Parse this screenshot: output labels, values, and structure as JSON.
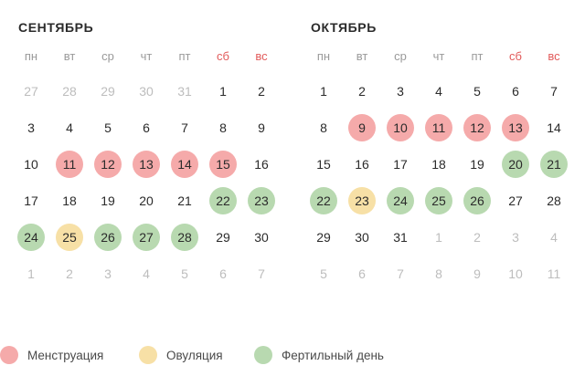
{
  "colors": {
    "menstruation": "#f5aaaa",
    "ovulation": "#f7e0a6",
    "fertile": "#b8d9b0",
    "weekend_header": "#e25b5b",
    "muted": "#bdbdbd"
  },
  "weekdays": [
    {
      "label": "пн",
      "weekend": false
    },
    {
      "label": "вт",
      "weekend": false
    },
    {
      "label": "ср",
      "weekend": false
    },
    {
      "label": "чт",
      "weekend": false
    },
    {
      "label": "пт",
      "weekend": false
    },
    {
      "label": "сб",
      "weekend": true
    },
    {
      "label": "вс",
      "weekend": true
    }
  ],
  "months": [
    {
      "title": "Сентябрь",
      "weeks": [
        [
          {
            "d": "27",
            "muted": true
          },
          {
            "d": "28",
            "muted": true
          },
          {
            "d": "29",
            "muted": true
          },
          {
            "d": "30",
            "muted": true
          },
          {
            "d": "31",
            "muted": true
          },
          {
            "d": "1"
          },
          {
            "d": "2"
          }
        ],
        [
          {
            "d": "3"
          },
          {
            "d": "4"
          },
          {
            "d": "5"
          },
          {
            "d": "6"
          },
          {
            "d": "7"
          },
          {
            "d": "8"
          },
          {
            "d": "9"
          }
        ],
        [
          {
            "d": "10"
          },
          {
            "d": "11",
            "t": "m"
          },
          {
            "d": "12",
            "t": "m"
          },
          {
            "d": "13",
            "t": "m"
          },
          {
            "d": "14",
            "t": "m"
          },
          {
            "d": "15",
            "t": "m"
          },
          {
            "d": "16"
          }
        ],
        [
          {
            "d": "17"
          },
          {
            "d": "18"
          },
          {
            "d": "19"
          },
          {
            "d": "20"
          },
          {
            "d": "21"
          },
          {
            "d": "22",
            "t": "f"
          },
          {
            "d": "23",
            "t": "f"
          }
        ],
        [
          {
            "d": "24",
            "t": "f"
          },
          {
            "d": "25",
            "t": "o"
          },
          {
            "d": "26",
            "t": "f"
          },
          {
            "d": "27",
            "t": "f"
          },
          {
            "d": "28",
            "t": "f"
          },
          {
            "d": "29"
          },
          {
            "d": "30"
          }
        ],
        [
          {
            "d": "1",
            "muted": true
          },
          {
            "d": "2",
            "muted": true
          },
          {
            "d": "3",
            "muted": true
          },
          {
            "d": "4",
            "muted": true
          },
          {
            "d": "5",
            "muted": true
          },
          {
            "d": "6",
            "muted": true
          },
          {
            "d": "7",
            "muted": true
          }
        ]
      ]
    },
    {
      "title": "Октябрь",
      "weeks": [
        [
          {
            "d": "1"
          },
          {
            "d": "2"
          },
          {
            "d": "3"
          },
          {
            "d": "4"
          },
          {
            "d": "5"
          },
          {
            "d": "6"
          },
          {
            "d": "7"
          }
        ],
        [
          {
            "d": "8"
          },
          {
            "d": "9",
            "t": "m"
          },
          {
            "d": "10",
            "t": "m"
          },
          {
            "d": "11",
            "t": "m"
          },
          {
            "d": "12",
            "t": "m"
          },
          {
            "d": "13",
            "t": "m"
          },
          {
            "d": "14"
          }
        ],
        [
          {
            "d": "15"
          },
          {
            "d": "16"
          },
          {
            "d": "17"
          },
          {
            "d": "18"
          },
          {
            "d": "19"
          },
          {
            "d": "20",
            "t": "f"
          },
          {
            "d": "21",
            "t": "f"
          }
        ],
        [
          {
            "d": "22",
            "t": "f"
          },
          {
            "d": "23",
            "t": "o"
          },
          {
            "d": "24",
            "t": "f"
          },
          {
            "d": "25",
            "t": "f"
          },
          {
            "d": "26",
            "t": "f"
          },
          {
            "d": "27"
          },
          {
            "d": "28"
          }
        ],
        [
          {
            "d": "29"
          },
          {
            "d": "30"
          },
          {
            "d": "31"
          },
          {
            "d": "1",
            "muted": true
          },
          {
            "d": "2",
            "muted": true
          },
          {
            "d": "3",
            "muted": true
          },
          {
            "d": "4",
            "muted": true
          }
        ],
        [
          {
            "d": "5",
            "muted": true
          },
          {
            "d": "6",
            "muted": true
          },
          {
            "d": "7",
            "muted": true
          },
          {
            "d": "8",
            "muted": true
          },
          {
            "d": "9",
            "muted": true
          },
          {
            "d": "10",
            "muted": true
          },
          {
            "d": "11",
            "muted": true
          }
        ]
      ]
    }
  ],
  "legend": [
    {
      "label": "Менструация",
      "kind": "menstruation"
    },
    {
      "label": "Овуляция",
      "kind": "ovulation"
    },
    {
      "label": "Фертильный день",
      "kind": "fertile"
    }
  ]
}
